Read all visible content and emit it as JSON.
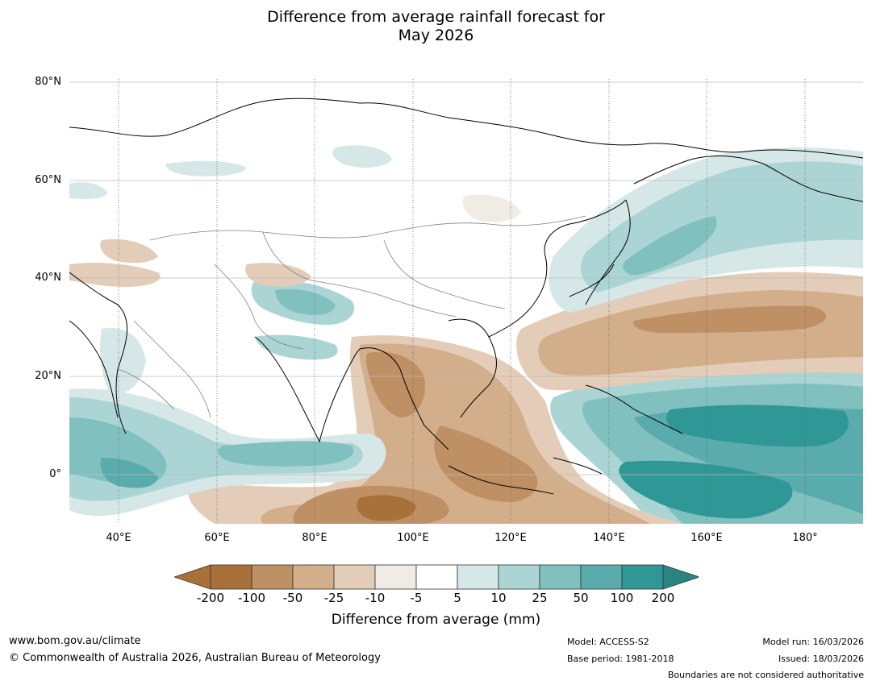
{
  "title": {
    "line1": "Difference from average rainfall forecast for",
    "line2": "May 2026"
  },
  "map": {
    "lat_labels": [
      "80°N",
      "60°N",
      "40°N",
      "20°N",
      "0°"
    ],
    "lon_labels": [
      "40°E",
      "60°E",
      "80°E",
      "100°E",
      "120°E",
      "140°E",
      "160°E",
      "180°"
    ],
    "extent": {
      "lon_min": 30,
      "lon_max": 192,
      "lat_min": -10,
      "lat_max": 81
    }
  },
  "colorbar": {
    "title": "Difference from average (mm)",
    "ticks": [
      "-200",
      "-100",
      "-50",
      "-25",
      "-10",
      "-5",
      "5",
      "10",
      "25",
      "50",
      "100",
      "200"
    ],
    "colors": [
      "#a8713a",
      "#a8713a",
      "#bf9063",
      "#d2ae8b",
      "#e3cdb8",
      "#f0ebe5",
      "#ffffff",
      "#d5e8e7",
      "#abd5d4",
      "#80c1c0",
      "#59acab",
      "#2f9896",
      "#2a8582"
    ]
  },
  "footer": {
    "website": "www.bom.gov.au/climate",
    "copyright": "© Commonwealth of Australia 2026, Australian Bureau of Meteorology",
    "model": "Model: ACCESS-S2",
    "base_period": "Base period: 1981-2018",
    "model_run": "Model run: 16/03/2026",
    "issued": "Issued: 18/03/2026",
    "disclaimer": "Boundaries are not considered authoritative"
  }
}
